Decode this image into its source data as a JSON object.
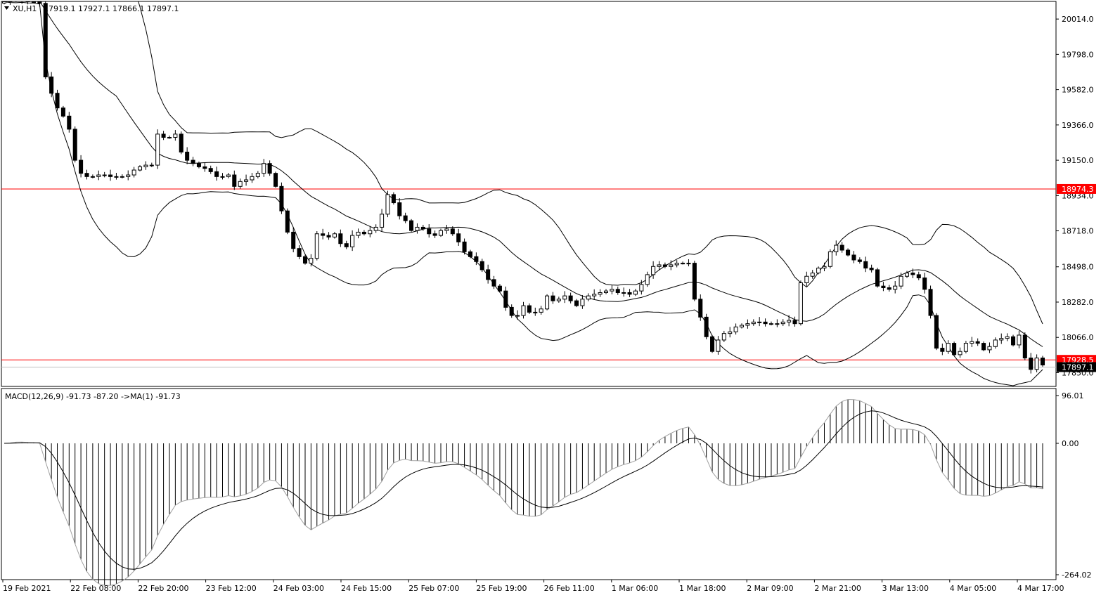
{
  "window": {
    "symbol": "XU,H1",
    "ohlc": "17919.1 17927.1 17866.1 17897.1",
    "menu_icon": "triangle-down-icon"
  },
  "indicator": {
    "label": "MACD(12,26,9) -91.73 -87.20  ->MA(1) -91.73"
  },
  "colors": {
    "background": "#ffffff",
    "foreground": "#000000",
    "level_line": "#ff0000",
    "level_tag": "#ff0000",
    "price_tag": "#000000",
    "histogram": "#000000",
    "signal": "#a0a0a0",
    "bid_line": "#c0c0c0"
  },
  "chart_data": [
    {
      "type": "candlestick",
      "instrument": "XU,H1",
      "price_axis_ticks": [
        20014.0,
        19798.0,
        19582.0,
        19366.0,
        19150.0,
        18934.0,
        18718.0,
        18498.0,
        18282.0,
        18066.0,
        17850.0
      ],
      "price_axis_labels": [
        "20014.0",
        "19798.0",
        "19582.0",
        "19366.0",
        "19150.0",
        "18934.0",
        "18718.0",
        "18498.0",
        "18282.0",
        "18066.0",
        "17850.0"
      ],
      "ylim": [
        17766,
        20122
      ],
      "time_labels": [
        "19 Feb 2021",
        "22 Feb 08:00",
        "22 Feb 20:00",
        "23 Feb 12:00",
        "24 Feb 03:00",
        "24 Feb 15:00",
        "25 Feb 07:00",
        "25 Feb 19:00",
        "26 Feb 11:00",
        "1 Mar 06:00",
        "1 Mar 18:00",
        "2 Mar 09:00",
        "2 Mar 21:00",
        "3 Mar 13:00",
        "4 Mar 05:00",
        "4 Mar 17:00"
      ],
      "horizontal_levels": [
        {
          "value": 18974.3,
          "label": "18974.3"
        },
        {
          "value": 17928.5,
          "label": "17928.5"
        }
      ],
      "last_price": {
        "value": 17897.1,
        "label": "17897.1"
      },
      "closes": [
        20120,
        20130,
        20140,
        20130,
        20120,
        20120,
        20110,
        19660,
        19560,
        19470,
        19420,
        19340,
        19150,
        19070,
        19050,
        19050,
        19060,
        19060,
        19050,
        19050,
        19050,
        19060,
        19090,
        19110,
        19120,
        19120,
        19310,
        19290,
        19290,
        19310,
        19200,
        19150,
        19130,
        19110,
        19100,
        19080,
        19050,
        19050,
        19060,
        18990,
        19020,
        19030,
        19050,
        19070,
        19130,
        19070,
        18990,
        18840,
        18710,
        18610,
        18560,
        18520,
        18550,
        18700,
        18690,
        18680,
        18700,
        18640,
        18620,
        18690,
        18710,
        18700,
        18720,
        18740,
        18820,
        18940,
        18890,
        18810,
        18780,
        18720,
        18740,
        18730,
        18700,
        18690,
        18720,
        18730,
        18700,
        18650,
        18590,
        18560,
        18530,
        18480,
        18420,
        18380,
        18350,
        18250,
        18200,
        18200,
        18260,
        18220,
        18220,
        18240,
        18320,
        18290,
        18300,
        18320,
        18290,
        18260,
        18300,
        18320,
        18330,
        18340,
        18350,
        18360,
        18340,
        18340,
        18330,
        18350,
        18390,
        18450,
        18500,
        18510,
        18500,
        18510,
        18520,
        18520,
        18520,
        18300,
        18190,
        18070,
        17980,
        18050,
        18090,
        18100,
        18130,
        18140,
        18150,
        18160,
        18160,
        18150,
        18150,
        18150,
        18160,
        18170,
        18150,
        18400,
        18440,
        18460,
        18490,
        18500,
        18590,
        18630,
        18600,
        18570,
        18540,
        18530,
        18490,
        18480,
        18380,
        18370,
        18360,
        18380,
        18440,
        18460,
        18450,
        18430,
        18360,
        18200,
        18000,
        17980,
        18030,
        17960,
        17980,
        18030,
        18040,
        18030,
        17990,
        18010,
        18050,
        18060,
        18070,
        18020,
        18080,
        17940,
        17870,
        17940,
        17897.1
      ]
    },
    {
      "type": "macd",
      "label": "MACD(12,26,9)",
      "fast": 12,
      "slow": 26,
      "signal_period": 9,
      "macd_value": -91.73,
      "signal_value": -87.2,
      "ma_value": -91.73,
      "axis_labels": [
        "96.01",
        "0.00",
        "-264.02"
      ],
      "ylim": [
        -264.02,
        96.01
      ]
    }
  ]
}
